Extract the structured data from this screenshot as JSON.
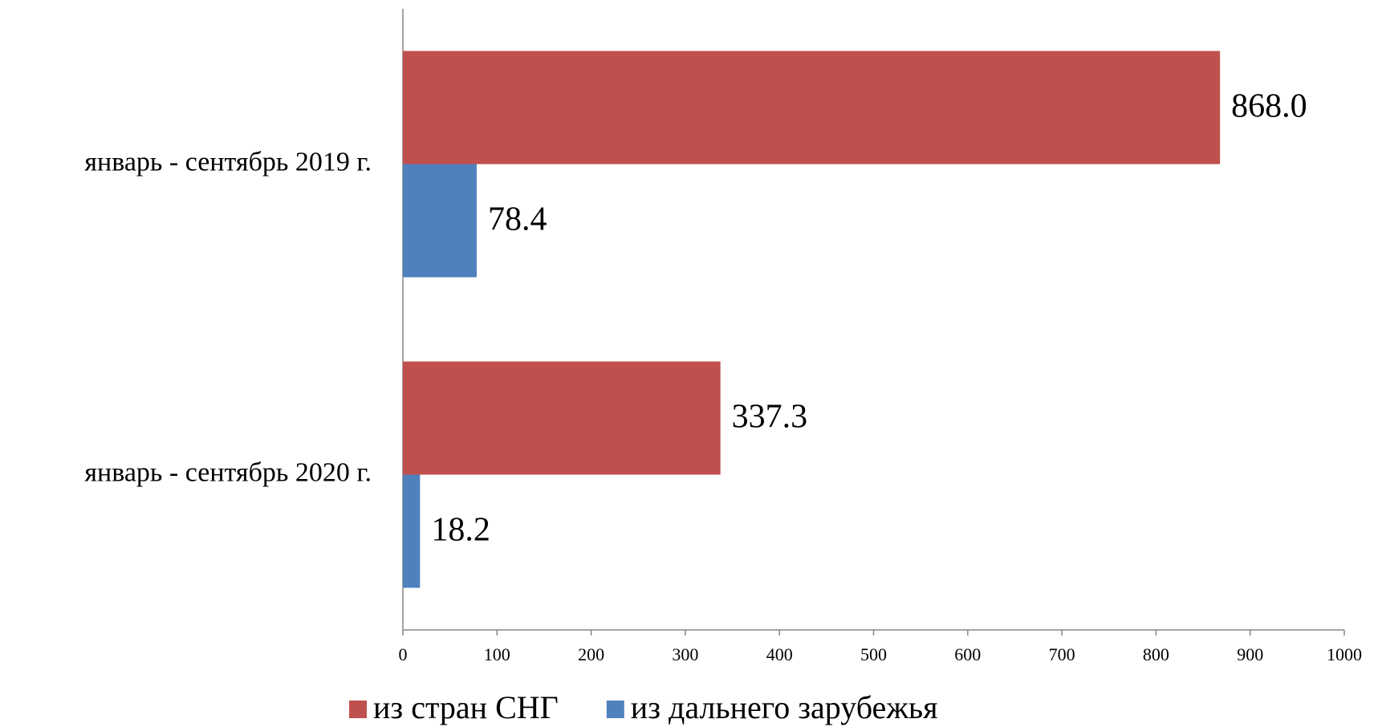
{
  "chart_data": {
    "type": "bar",
    "orientation": "horizontal",
    "categories": [
      "январь - сентябрь 2019 г.",
      "январь - сентябрь 2020 г."
    ],
    "series": [
      {
        "name": "из стран СНГ",
        "color": "#c0504d",
        "values": [
          868.0,
          337.3
        ],
        "value_labels": [
          "868.0",
          "337.3"
        ]
      },
      {
        "name": "из дальнего зарубежья",
        "color": "#4f81bd",
        "values": [
          78.4,
          18.2
        ],
        "value_labels": [
          "78.4",
          "18.2"
        ]
      }
    ],
    "xlim": [
      0,
      1000
    ],
    "xticks": [
      0,
      100,
      200,
      300,
      400,
      500,
      600,
      700,
      800,
      900,
      1000
    ],
    "grid": false,
    "legend": "bottom"
  }
}
